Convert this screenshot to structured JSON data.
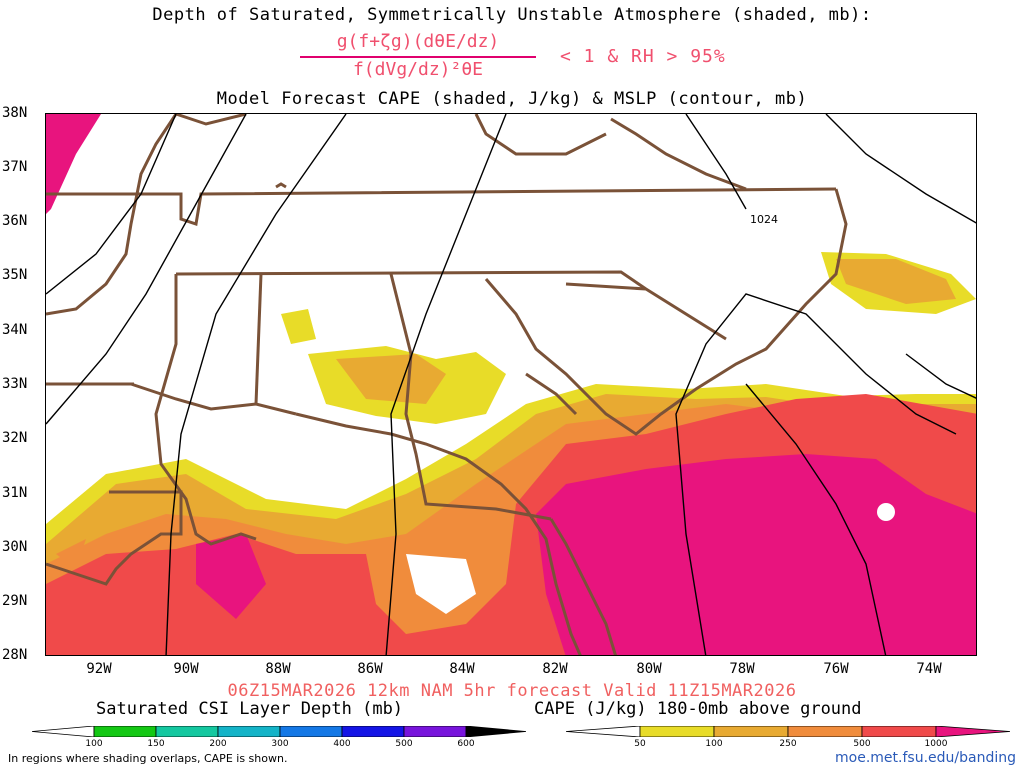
{
  "header": {
    "title_line1": "Depth of Saturated, Symmetrically Unstable Atmosphere (shaded, mb):",
    "formula_numerator": "g(f+ζg)(dθE/dz)",
    "formula_denominator": "f(dVg/dz)²θE",
    "formula_condition": "< 1 & RH > 95%",
    "title_line3": "Model Forecast CAPE (shaded, J/kg) & MSLP (contour, mb)"
  },
  "map": {
    "lat_labels": [
      "38N",
      "37N",
      "36N",
      "35N",
      "34N",
      "33N",
      "32N",
      "31N",
      "30N",
      "29N",
      "28N"
    ],
    "lon_labels": [
      "92W",
      "90W",
      "88W",
      "86W",
      "84W",
      "82W",
      "80W",
      "78W",
      "76W",
      "74W"
    ],
    "isobar_label": "1024",
    "colors": {
      "cape_50": "#e8dc28",
      "cape_100": "#e8aa32",
      "cape_250": "#f08c3c",
      "cape_500": "#f04a4a",
      "cape_1000": "#e8147e",
      "state_lines": "#7a5238",
      "isobars": "#000000"
    }
  },
  "footer": {
    "valid_text": "06Z15MAR2026 12km NAM 5hr forecast Valid 11Z15MAR2026",
    "csi_label": "Saturated CSI Layer Depth (mb)",
    "cape_label": "CAPE (J/kg) 180-0mb above ground",
    "csi_ticks": [
      "100",
      "150",
      "200",
      "300",
      "400",
      "500",
      "600"
    ],
    "cape_ticks": [
      "50",
      "100",
      "250",
      "500",
      "1000"
    ],
    "note": "In regions where shading overlaps, CAPE is shown.",
    "url": "moe.met.fsu.edu/banding"
  }
}
